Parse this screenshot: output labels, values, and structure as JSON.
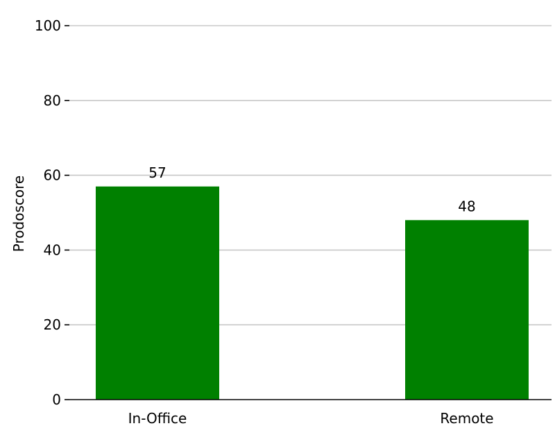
{
  "chart_data": {
    "type": "bar",
    "categories": [
      "In-Office",
      "Remote"
    ],
    "values": [
      57,
      48
    ],
    "data_labels": [
      "57",
      "48"
    ],
    "title": "",
    "xlabel": "",
    "ylabel": "Prodoscore",
    "ylim": [
      0,
      100
    ],
    "yticks": [
      0,
      20,
      40,
      60,
      80,
      100
    ],
    "ytick_labels": [
      "0",
      "20",
      "40",
      "60",
      "80",
      "100"
    ],
    "grid": true,
    "grid_axis": "y",
    "legend": "none",
    "bar_color": "#008000",
    "grid_color": "#c8c8c8"
  }
}
